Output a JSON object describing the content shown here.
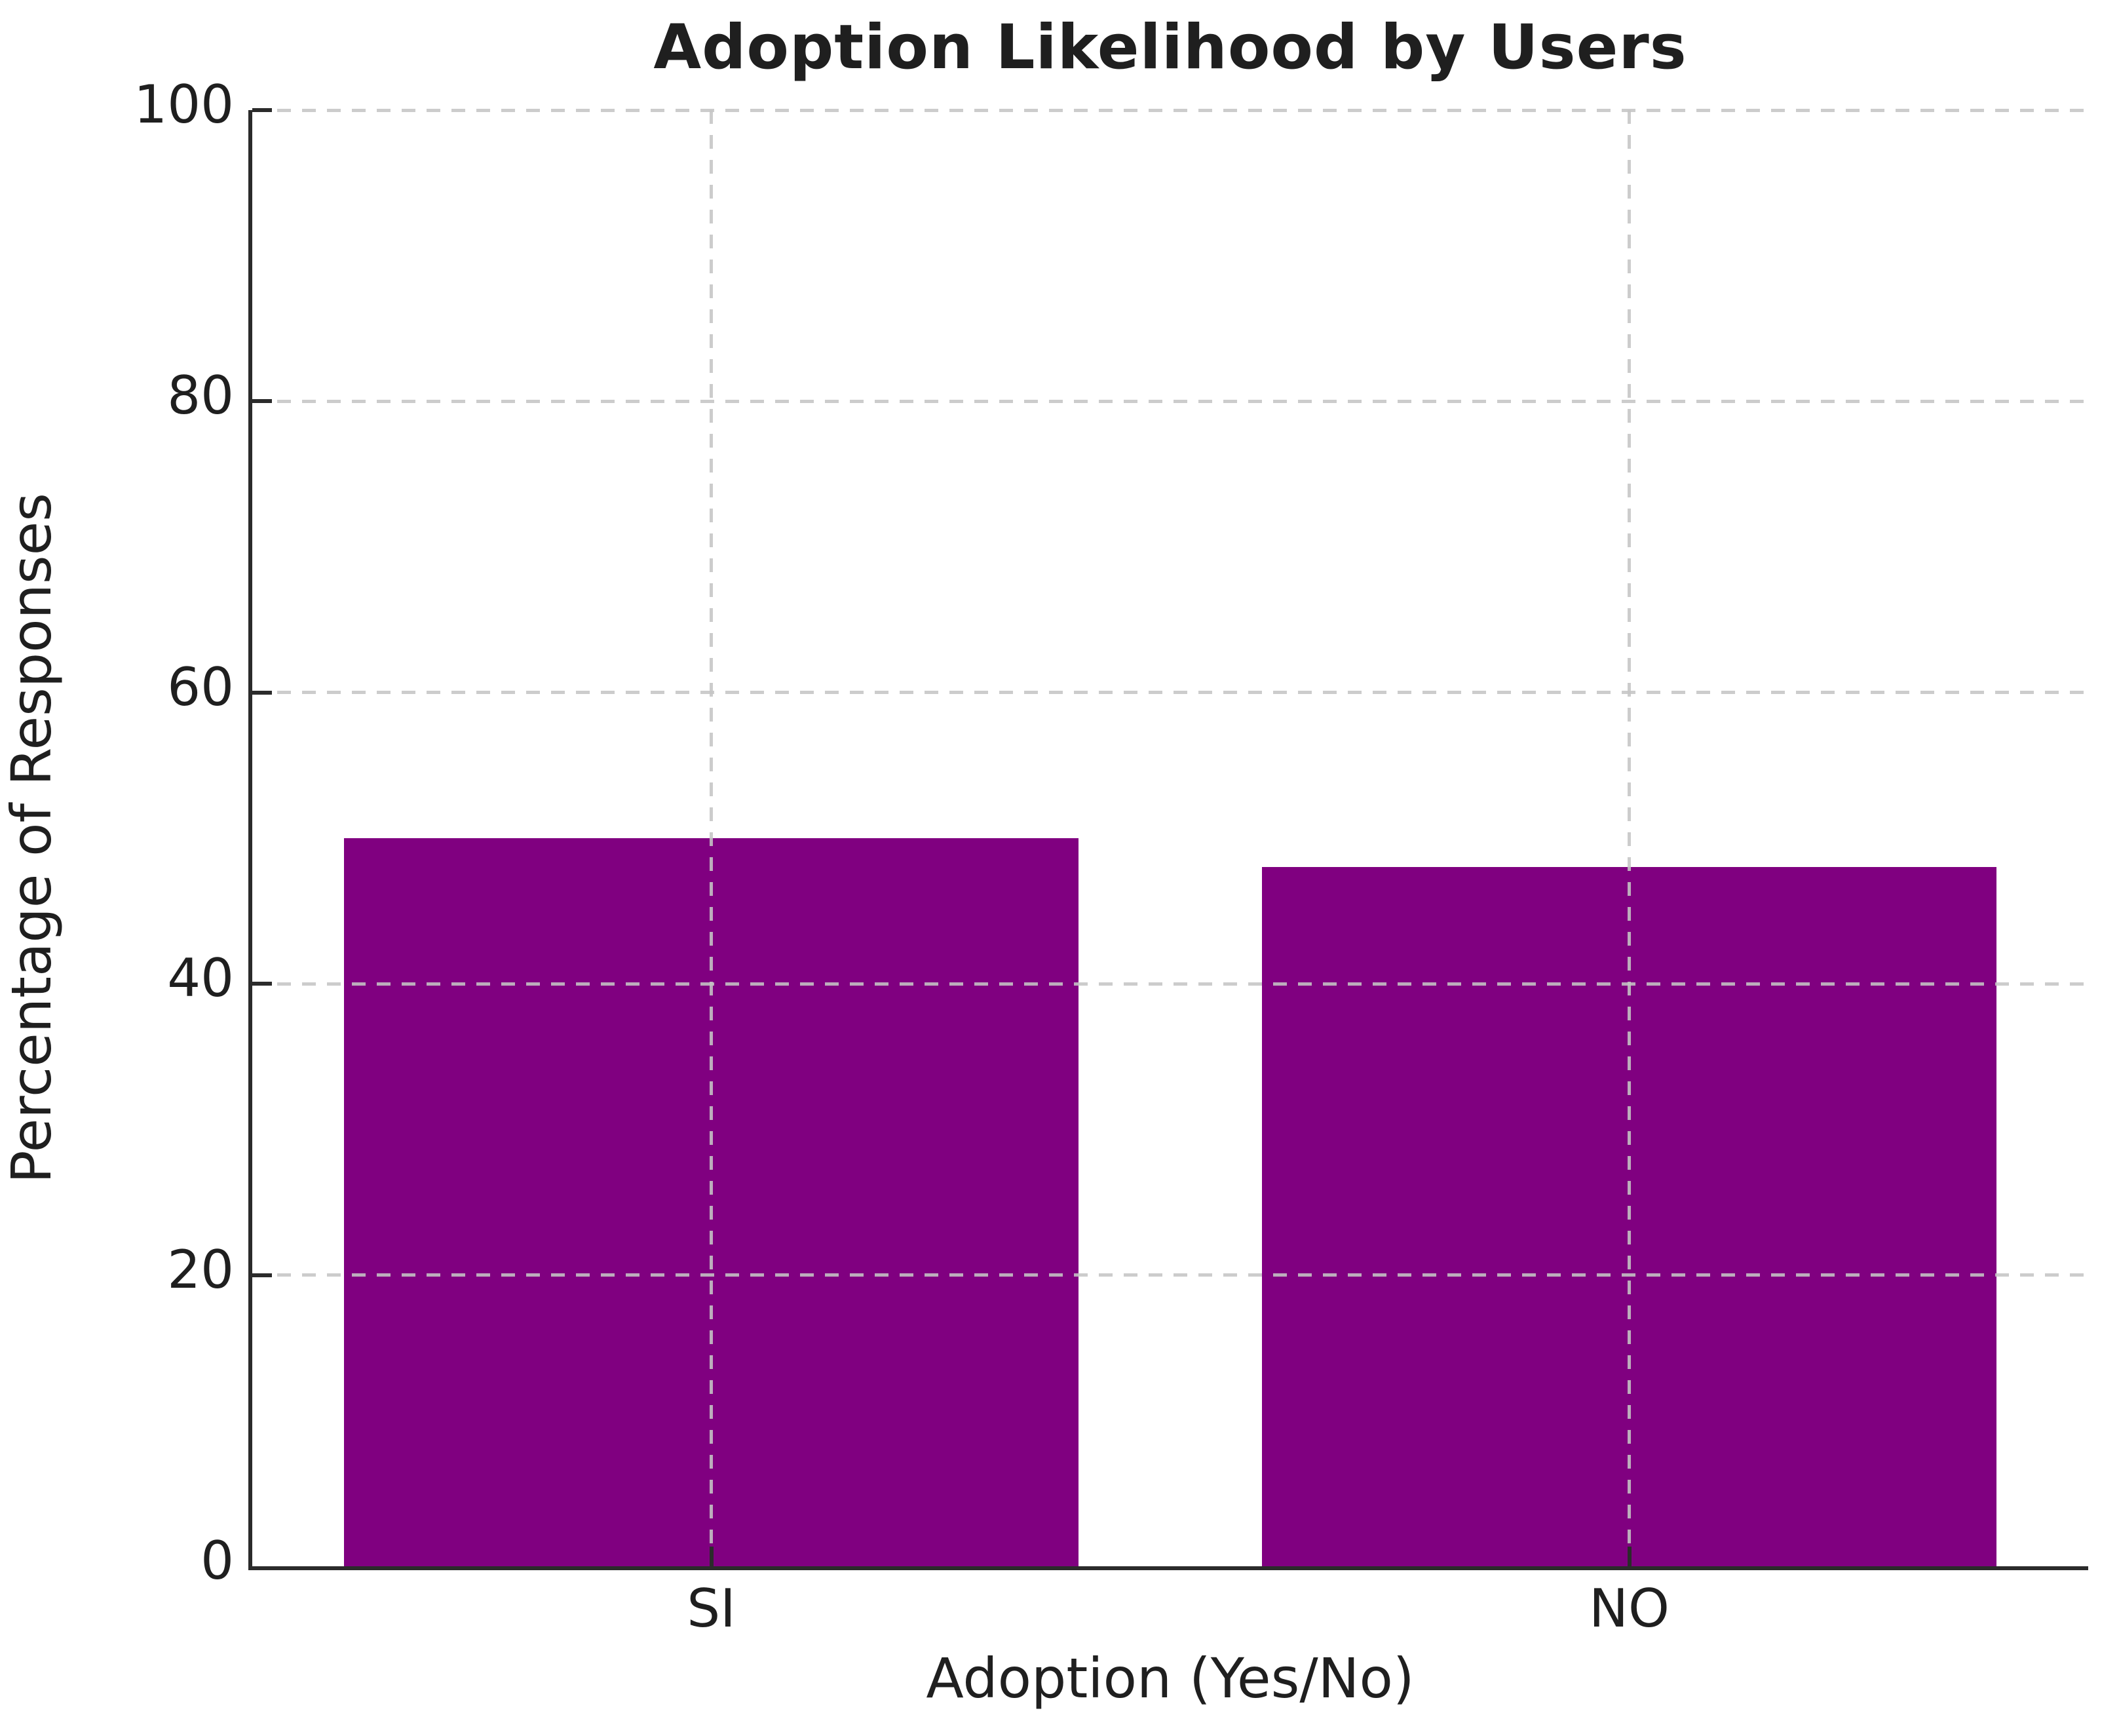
{
  "chart_data": {
    "type": "bar",
    "title": "Adoption Likelihood by Users",
    "xlabel": "Adoption (Yes/No)",
    "ylabel": "Percentage of Responses",
    "categories": [
      "SI",
      "NO"
    ],
    "values": [
      50,
      48
    ],
    "ylim": [
      0,
      100
    ],
    "yticks": [
      0,
      20,
      40,
      60,
      80,
      100
    ],
    "bar_color": "#800080",
    "grid_color": "#c5c5c5",
    "axis_color": "#2b2b2b",
    "text_color": "#1f1f1f",
    "grid_style": "dashed",
    "grid_above_bars": true,
    "legend": "none"
  }
}
